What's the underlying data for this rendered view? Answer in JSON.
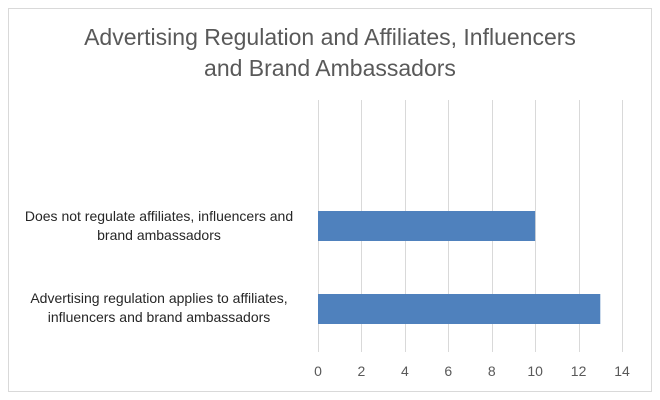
{
  "chart_data": {
    "type": "bar",
    "orientation": "horizontal",
    "title": "Advertising Regulation and Affiliates, Influencers and Brand Ambassadors",
    "title_lines": [
      "Advertising Regulation and Affiliates, Influencers",
      "and Brand Ambassadors"
    ],
    "categories": [
      "Does not regulate affiliates, influencers and brand ambassadors",
      "Advertising regulation applies to affiliates, influencers and brand ambassadors"
    ],
    "category_lines": [
      [
        "Does not regulate affiliates, influencers and",
        "brand ambassadors"
      ],
      [
        "Advertising regulation applies to affiliates,",
        "influencers and brand ambassadors"
      ]
    ],
    "values": [
      10,
      13
    ],
    "xlim": [
      0,
      14
    ],
    "x_ticks": [
      0,
      2,
      4,
      6,
      8,
      10,
      12,
      14
    ],
    "xlabel": "",
    "ylabel": "",
    "grid": "vertical",
    "legend": "none",
    "colors": {
      "bar": "#4f81bd",
      "grid": "#d9d9d9",
      "text": "#595959"
    }
  }
}
